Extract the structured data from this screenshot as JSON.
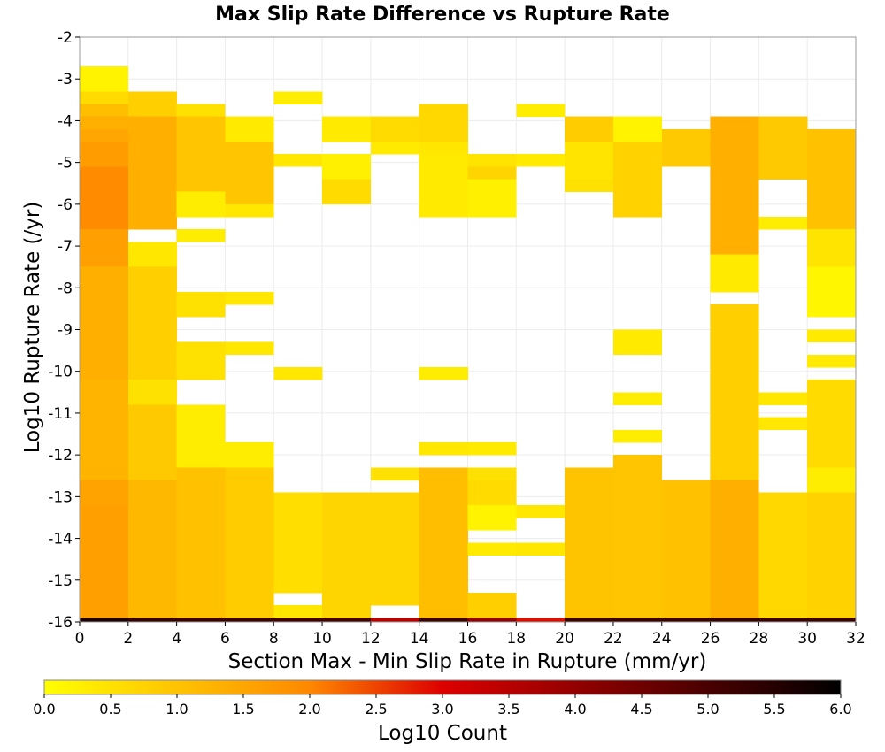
{
  "chart_data": {
    "type": "heatmap",
    "title": "Max Slip Rate Difference vs Rupture Rate",
    "xlabel": "Section Max - Min Slip Rate in Rupture (mm/yr)",
    "ylabel": "Log10 Rupture Rate (/yr)",
    "xlim": [
      0,
      32
    ],
    "ylim": [
      -16,
      -2
    ],
    "x_ticks": [
      "0",
      "2",
      "4",
      "6",
      "8",
      "10",
      "12",
      "14",
      "16",
      "18",
      "20",
      "22",
      "24",
      "26",
      "28",
      "30",
      "32"
    ],
    "y_ticks": [
      "-16",
      "-15",
      "-14",
      "-13",
      "-12",
      "-11",
      "-10",
      "-9",
      "-8",
      "-7",
      "-6",
      "-5",
      "-4",
      "-3",
      "-2"
    ],
    "x_bin_width": 2,
    "y_bin_width": 0.3,
    "colorbar": {
      "label": "Log10 Count",
      "range": [
        0,
        6
      ],
      "ticks": [
        "0.0",
        "0.5",
        "1.0",
        "1.5",
        "2.0",
        "2.5",
        "3.0",
        "3.5",
        "4.0",
        "4.5",
        "5.0",
        "5.5",
        "6.0"
      ],
      "stops": [
        "#ffff00",
        "#ff8800",
        "#dd0000",
        "#000000"
      ]
    },
    "columns": [
      {
        "x_start": 0,
        "cells": [
          {
            "y_top": -2.7,
            "y_bottom": -3.3,
            "value": 0.2
          },
          {
            "y_top": -3.3,
            "y_bottom": -3.6,
            "value": 0.6
          },
          {
            "y_top": -3.6,
            "y_bottom": -3.9,
            "value": 1.1
          },
          {
            "y_top": -3.9,
            "y_bottom": -4.2,
            "value": 1.35
          },
          {
            "y_top": -4.2,
            "y_bottom": -4.5,
            "value": 1.5
          },
          {
            "y_top": -4.5,
            "y_bottom": -5.1,
            "value": 1.65
          },
          {
            "y_top": -5.1,
            "y_bottom": -6.6,
            "value": 1.95
          },
          {
            "y_top": -6.6,
            "y_bottom": -7.5,
            "value": 1.6
          },
          {
            "y_top": -7.5,
            "y_bottom": -10.2,
            "value": 1.35
          },
          {
            "y_top": -10.2,
            "y_bottom": -12.6,
            "value": 1.25
          },
          {
            "y_top": -12.6,
            "y_bottom": -13.2,
            "value": 1.55
          },
          {
            "y_top": -13.2,
            "y_bottom": -15.9,
            "value": 1.6
          },
          {
            "y_top": -15.9,
            "y_bottom": -16.0,
            "value": 5.6
          }
        ]
      },
      {
        "x_start": 2,
        "cells": [
          {
            "y_top": -3.3,
            "y_bottom": -3.9,
            "value": 0.8
          },
          {
            "y_top": -3.9,
            "y_bottom": -6.6,
            "value": 1.35
          },
          {
            "y_top": -6.9,
            "y_bottom": -7.5,
            "value": 0.4
          },
          {
            "y_top": -7.5,
            "y_bottom": -10.2,
            "value": 0.8
          },
          {
            "y_top": -10.2,
            "y_bottom": -10.8,
            "value": 0.5
          },
          {
            "y_top": -10.8,
            "y_bottom": -12.6,
            "value": 0.9
          },
          {
            "y_top": -12.6,
            "y_bottom": -15.9,
            "value": 1.2
          },
          {
            "y_top": -15.9,
            "y_bottom": -16.0,
            "value": 5.3
          }
        ]
      },
      {
        "x_start": 4,
        "cells": [
          {
            "y_top": -3.6,
            "y_bottom": -3.9,
            "value": 0.5
          },
          {
            "y_top": -3.9,
            "y_bottom": -5.7,
            "value": 0.95
          },
          {
            "y_top": -5.7,
            "y_bottom": -6.3,
            "value": 0.3
          },
          {
            "y_top": -6.6,
            "y_bottom": -6.9,
            "value": 0.3
          },
          {
            "y_top": -8.1,
            "y_bottom": -8.7,
            "value": 0.5
          },
          {
            "y_top": -9.3,
            "y_bottom": -10.2,
            "value": 0.5
          },
          {
            "y_top": -10.8,
            "y_bottom": -12.3,
            "value": 0.3
          },
          {
            "y_top": -12.3,
            "y_bottom": -15.9,
            "value": 1.05
          },
          {
            "y_top": -15.9,
            "y_bottom": -16.0,
            "value": 5.2
          }
        ]
      },
      {
        "x_start": 6,
        "cells": [
          {
            "y_top": -3.9,
            "y_bottom": -4.5,
            "value": 0.35
          },
          {
            "y_top": -4.5,
            "y_bottom": -6.0,
            "value": 0.95
          },
          {
            "y_top": -6.0,
            "y_bottom": -6.3,
            "value": 0.4
          },
          {
            "y_top": -8.1,
            "y_bottom": -8.4,
            "value": 0.4
          },
          {
            "y_top": -9.3,
            "y_bottom": -9.6,
            "value": 0.4
          },
          {
            "y_top": -11.7,
            "y_bottom": -12.3,
            "value": 0.3
          },
          {
            "y_top": -12.3,
            "y_bottom": -15.9,
            "value": 0.85
          },
          {
            "y_top": -15.9,
            "y_bottom": -16.0,
            "value": 5.2
          }
        ]
      },
      {
        "x_start": 8,
        "cells": [
          {
            "y_top": -3.3,
            "y_bottom": -3.6,
            "value": 0.3
          },
          {
            "y_top": -4.8,
            "y_bottom": -5.1,
            "value": 0.4
          },
          {
            "y_top": -9.9,
            "y_bottom": -10.2,
            "value": 0.4
          },
          {
            "y_top": -12.9,
            "y_bottom": -15.3,
            "value": 0.55
          },
          {
            "y_top": -15.6,
            "y_bottom": -15.9,
            "value": 0.4
          },
          {
            "y_top": -15.9,
            "y_bottom": -16.0,
            "value": 5.1
          }
        ]
      },
      {
        "x_start": 10,
        "cells": [
          {
            "y_top": -3.9,
            "y_bottom": -4.5,
            "value": 0.35
          },
          {
            "y_top": -4.8,
            "y_bottom": -5.4,
            "value": 0.25
          },
          {
            "y_top": -5.4,
            "y_bottom": -6.0,
            "value": 0.6
          },
          {
            "y_top": -12.9,
            "y_bottom": -15.9,
            "value": 0.7
          },
          {
            "y_top": -15.9,
            "y_bottom": -16.0,
            "value": 5.1
          }
        ]
      },
      {
        "x_start": 12,
        "cells": [
          {
            "y_top": -3.9,
            "y_bottom": -4.5,
            "value": 0.6
          },
          {
            "y_top": -4.5,
            "y_bottom": -4.8,
            "value": 0.35
          },
          {
            "y_top": -12.3,
            "y_bottom": -12.6,
            "value": 0.5
          },
          {
            "y_top": -12.9,
            "y_bottom": -15.6,
            "value": 0.7
          },
          {
            "y_top": -15.9,
            "y_bottom": -16.0,
            "value": 3.4
          }
        ]
      },
      {
        "x_start": 14,
        "cells": [
          {
            "y_top": -3.6,
            "y_bottom": -4.5,
            "value": 0.65
          },
          {
            "y_top": -4.5,
            "y_bottom": -4.8,
            "value": 0.4
          },
          {
            "y_top": -4.8,
            "y_bottom": -6.3,
            "value": 0.35
          },
          {
            "y_top": -9.9,
            "y_bottom": -10.2,
            "value": 0.3
          },
          {
            "y_top": -11.7,
            "y_bottom": -12.0,
            "value": 0.4
          },
          {
            "y_top": -12.3,
            "y_bottom": -15.9,
            "value": 1.1
          },
          {
            "y_top": -15.9,
            "y_bottom": -16.0,
            "value": 5.2
          }
        ]
      },
      {
        "x_start": 16,
        "cells": [
          {
            "y_top": -4.8,
            "y_bottom": -5.1,
            "value": 0.45
          },
          {
            "y_top": -5.1,
            "y_bottom": -5.4,
            "value": 0.7
          },
          {
            "y_top": -5.4,
            "y_bottom": -6.3,
            "value": 0.25
          },
          {
            "y_top": -11.7,
            "y_bottom": -12.0,
            "value": 0.35
          },
          {
            "y_top": -12.3,
            "y_bottom": -12.6,
            "value": 0.5
          },
          {
            "y_top": -12.6,
            "y_bottom": -13.2,
            "value": 0.6
          },
          {
            "y_top": -13.2,
            "y_bottom": -13.8,
            "value": 0.2
          },
          {
            "y_top": -14.1,
            "y_bottom": -14.4,
            "value": 0.35
          },
          {
            "y_top": -15.3,
            "y_bottom": -15.9,
            "value": 0.8
          },
          {
            "y_top": -15.9,
            "y_bottom": -16.0,
            "value": 4.0
          }
        ]
      },
      {
        "x_start": 18,
        "cells": [
          {
            "y_top": -3.6,
            "y_bottom": -3.9,
            "value": 0.3
          },
          {
            "y_top": -4.8,
            "y_bottom": -5.1,
            "value": 0.35
          },
          {
            "y_top": -13.2,
            "y_bottom": -13.5,
            "value": 0.4
          },
          {
            "y_top": -14.1,
            "y_bottom": -14.4,
            "value": 0.4
          },
          {
            "y_top": -15.9,
            "y_bottom": -16.0,
            "value": 2.9
          }
        ]
      },
      {
        "x_start": 20,
        "cells": [
          {
            "y_top": -3.9,
            "y_bottom": -4.5,
            "value": 0.85
          },
          {
            "y_top": -4.5,
            "y_bottom": -5.4,
            "value": 0.45
          },
          {
            "y_top": -5.4,
            "y_bottom": -5.7,
            "value": 0.5
          },
          {
            "y_top": -12.3,
            "y_bottom": -15.9,
            "value": 1.0
          },
          {
            "y_top": -15.9,
            "y_bottom": -16.0,
            "value": 5.2
          }
        ]
      },
      {
        "x_start": 22,
        "cells": [
          {
            "y_top": -3.9,
            "y_bottom": -4.5,
            "value": 0.2
          },
          {
            "y_top": -4.5,
            "y_bottom": -6.3,
            "value": 0.75
          },
          {
            "y_top": -9.0,
            "y_bottom": -9.6,
            "value": 0.35
          },
          {
            "y_top": -10.5,
            "y_bottom": -10.8,
            "value": 0.3
          },
          {
            "y_top": -11.4,
            "y_bottom": -11.7,
            "value": 0.3
          },
          {
            "y_top": -12.0,
            "y_bottom": -15.9,
            "value": 0.95
          },
          {
            "y_top": -15.9,
            "y_bottom": -16.0,
            "value": 5.2
          }
        ]
      },
      {
        "x_start": 24,
        "cells": [
          {
            "y_top": -4.2,
            "y_bottom": -5.1,
            "value": 0.9
          },
          {
            "y_top": -12.6,
            "y_bottom": -15.9,
            "value": 1.05
          },
          {
            "y_top": -15.9,
            "y_bottom": -16.0,
            "value": 5.2
          }
        ]
      },
      {
        "x_start": 26,
        "cells": [
          {
            "y_top": -3.9,
            "y_bottom": -7.2,
            "value": 1.35
          },
          {
            "y_top": -7.2,
            "y_bottom": -8.1,
            "value": 0.35
          },
          {
            "y_top": -8.4,
            "y_bottom": -12.6,
            "value": 0.8
          },
          {
            "y_top": -12.6,
            "y_bottom": -15.9,
            "value": 1.35
          },
          {
            "y_top": -15.9,
            "y_bottom": -16.0,
            "value": 5.3
          }
        ]
      },
      {
        "x_start": 28,
        "cells": [
          {
            "y_top": -3.9,
            "y_bottom": -5.4,
            "value": 0.9
          },
          {
            "y_top": -6.3,
            "y_bottom": -6.6,
            "value": 0.3
          },
          {
            "y_top": -10.5,
            "y_bottom": -10.8,
            "value": 0.4
          },
          {
            "y_top": -11.1,
            "y_bottom": -11.4,
            "value": 0.4
          },
          {
            "y_top": -12.9,
            "y_bottom": -15.9,
            "value": 0.65
          },
          {
            "y_top": -15.9,
            "y_bottom": -16.0,
            "value": 5.2
          }
        ]
      },
      {
        "x_start": 30,
        "cells": [
          {
            "y_top": -4.2,
            "y_bottom": -6.6,
            "value": 1.05
          },
          {
            "y_top": -6.6,
            "y_bottom": -7.5,
            "value": 0.45
          },
          {
            "y_top": -7.5,
            "y_bottom": -8.7,
            "value": 0.15
          },
          {
            "y_top": -9.0,
            "y_bottom": -9.3,
            "value": 0.35
          },
          {
            "y_top": -9.6,
            "y_bottom": -9.9,
            "value": 0.35
          },
          {
            "y_top": -10.2,
            "y_bottom": -12.3,
            "value": 0.6
          },
          {
            "y_top": -12.3,
            "y_bottom": -12.9,
            "value": 0.3
          },
          {
            "y_top": -12.9,
            "y_bottom": -15.9,
            "value": 0.75
          },
          {
            "y_top": -15.9,
            "y_bottom": -16.0,
            "value": 5.2
          }
        ]
      }
    ]
  }
}
